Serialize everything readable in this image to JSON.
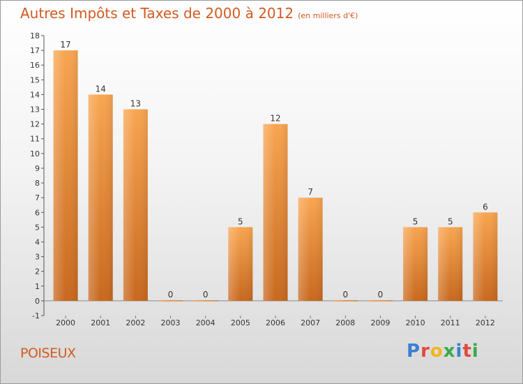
{
  "title": "Autres Impôts et Taxes de 2000 à 2012",
  "subtitle": "(en milliers d'€)",
  "place": "POISEUX",
  "logo": "Proxiti",
  "chart_data": {
    "type": "bar",
    "title": "Autres Impôts et Taxes de 2000 à 2012",
    "subtitle": "(en milliers d'€)",
    "categories": [
      "2000",
      "2001",
      "2002",
      "2003",
      "2004",
      "2005",
      "2006",
      "2007",
      "2008",
      "2009",
      "2010",
      "2011",
      "2012"
    ],
    "values": [
      17,
      14,
      13,
      0,
      0,
      5,
      12,
      7,
      0,
      0,
      5,
      5,
      6
    ],
    "xlabel": "",
    "ylabel": "",
    "ylim": [
      -1,
      18
    ],
    "yticks": [
      -1,
      0,
      1,
      2,
      3,
      4,
      5,
      6,
      7,
      8,
      9,
      10,
      11,
      12,
      13,
      14,
      15,
      16,
      17,
      18
    ],
    "grid": false,
    "bar_color": "#f7a04c",
    "bar_color_dark": "#c8681e"
  }
}
